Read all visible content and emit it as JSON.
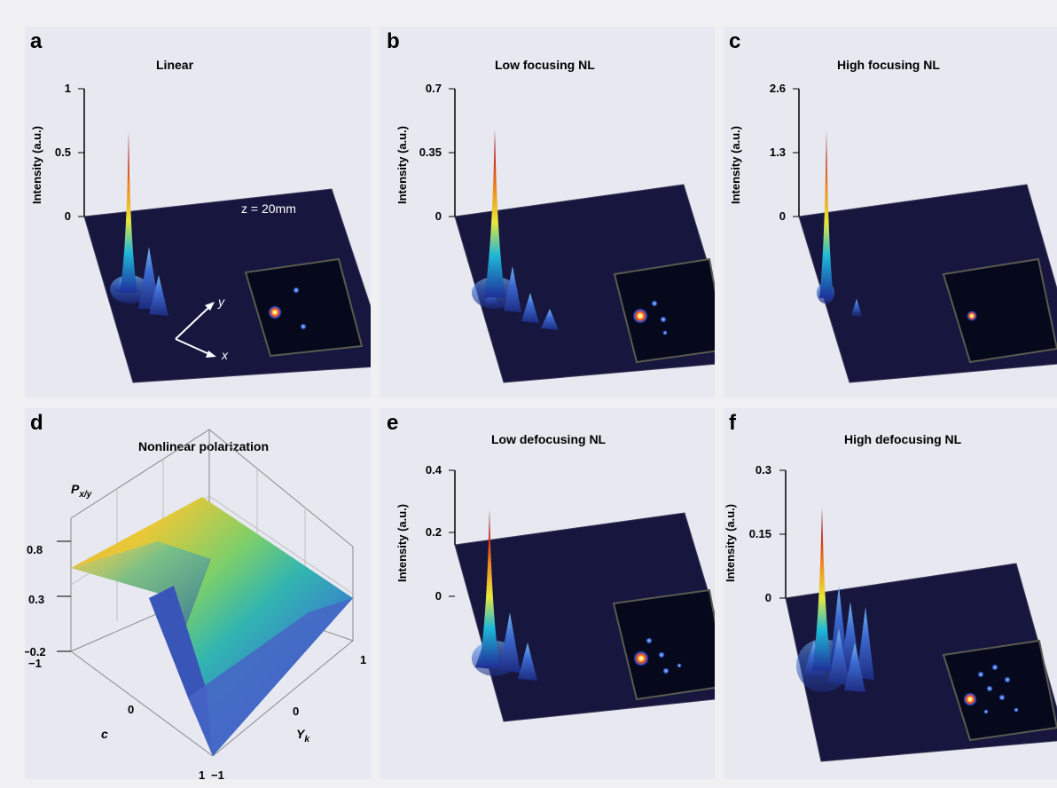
{
  "chart_data": [
    {
      "type": "surface",
      "panel": "a",
      "title": "Linear",
      "zlabel": "Intensity (a.u.)",
      "zticks": [
        "1",
        "0.5",
        "0"
      ],
      "zlim": [
        0,
        1
      ],
      "peak": 0.65,
      "annotation": "z = 20mm",
      "axes": [
        "x",
        "y"
      ],
      "colors": {
        "plane": "#16163f",
        "inset": "#06081c"
      }
    },
    {
      "type": "surface",
      "panel": "b",
      "title": "Low focusing NL",
      "zlabel": "Intensity (a.u.)",
      "zticks": [
        "0.7",
        "0.35",
        "0"
      ],
      "zlim": [
        0,
        0.7
      ],
      "peak": 0.47,
      "colors": {
        "plane": "#16163f",
        "inset": "#06081c"
      }
    },
    {
      "type": "surface",
      "panel": "c",
      "title": "High focusing NL",
      "zlabel": "Intensity (a.u.)",
      "zticks": [
        "2.6",
        "1.3",
        "0"
      ],
      "zlim": [
        0,
        2.6
      ],
      "peak": 1.75,
      "colors": {
        "plane": "#16163f",
        "inset": "#06081c"
      }
    },
    {
      "type": "surface",
      "panel": "d",
      "title": "Nonlinear polarization",
      "zlabel": "P",
      "zlabel_sub": "x/y",
      "zticks": [
        "0.8",
        "0.3",
        "−0.2"
      ],
      "zlim": [
        -0.2,
        0.8
      ],
      "xlabel": "c",
      "xticks": [
        "−1",
        "0",
        "1"
      ],
      "ylabel": "Y",
      "ylabel_sub": "k",
      "yticks": [
        "−1",
        "0",
        "1"
      ]
    },
    {
      "type": "surface",
      "panel": "e",
      "title": "Low defocusing NL",
      "zlabel": "Intensity (a.u.)",
      "zticks": [
        "0.4",
        "0.2",
        "0"
      ],
      "zlim": [
        0,
        0.4
      ],
      "peak": 0.27,
      "colors": {
        "plane": "#16163f",
        "inset": "#06081c"
      }
    },
    {
      "type": "surface",
      "panel": "f",
      "title": "High defocusing NL",
      "zlabel": "Intensity (a.u.)",
      "zticks": [
        "0.3",
        "0.15",
        "0"
      ],
      "zlim": [
        0,
        0.3
      ],
      "peak": 0.2,
      "colors": {
        "plane": "#16163f",
        "inset": "#06081c"
      }
    }
  ]
}
